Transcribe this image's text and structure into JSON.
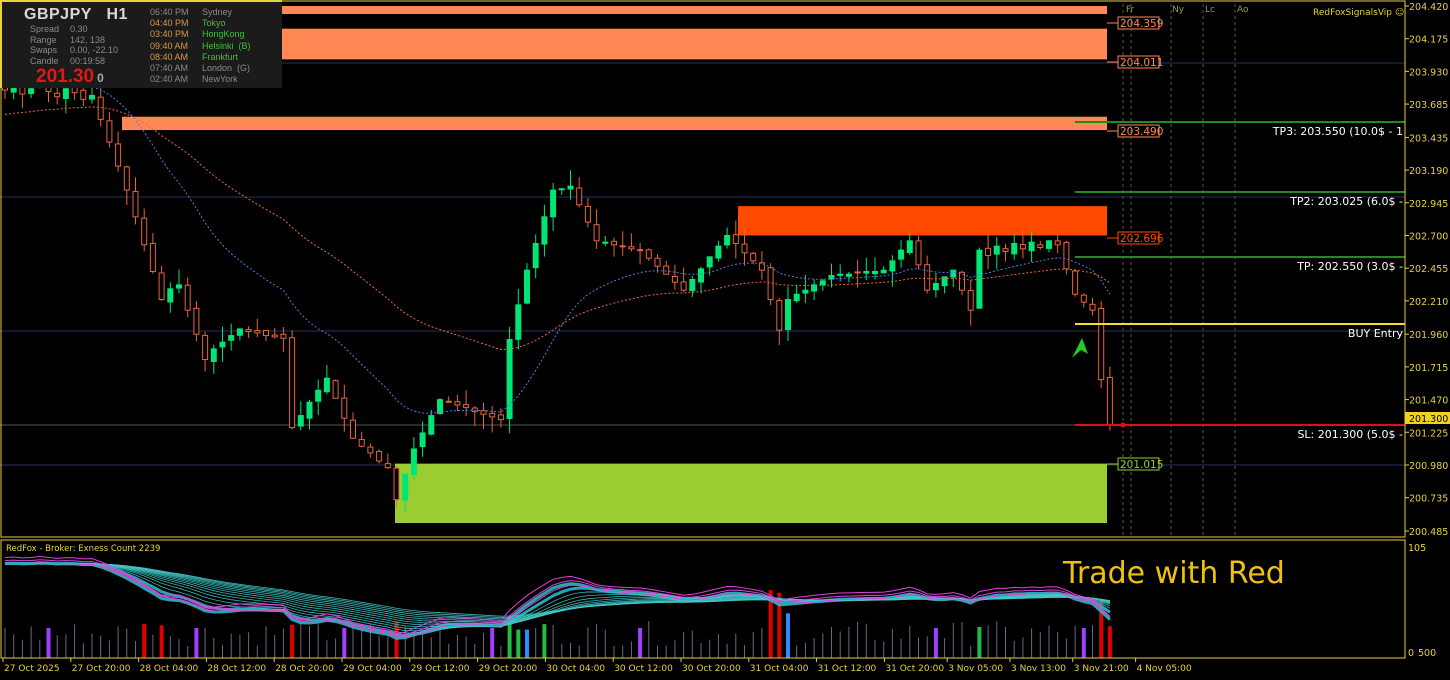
{
  "info_panel": {
    "symbol": "GBPJPY   H1",
    "stats": [
      {
        "label": "Spread",
        "value": "0.30"
      },
      {
        "label": "Range",
        "value": "142, 138"
      },
      {
        "label": "Swaps",
        "value": "0.00, -22.10"
      },
      {
        "label": "Candle",
        "value": "00:19:58"
      }
    ],
    "price": "201.30",
    "price_suffix": "0",
    "sessions": [
      {
        "time": "06:40 PM",
        "city": "Sydney",
        "active": false
      },
      {
        "time": "04:40 PM",
        "city": "Tokyo",
        "active": true
      },
      {
        "time": "03:40 PM",
        "city": "HongKong",
        "active": true
      },
      {
        "time": "09:40 AM",
        "city": "Helsinki  (B)",
        "active": true
      },
      {
        "time": "08:40 AM",
        "city": "Frankfurt",
        "active": true
      },
      {
        "time": "07:40 AM",
        "city": "London  (G)",
        "active": false
      },
      {
        "time": "02:40 AM",
        "city": "NewYork",
        "active": false
      }
    ]
  },
  "brand": "RedFoxSignalsVip ☺",
  "session_markers": [
    "Fr",
    "Ny",
    "Lc",
    "Ao"
  ],
  "zones": [
    {
      "top": 204.42,
      "bottom": 204.36,
      "label": "204.359",
      "color": "#ff8855"
    },
    {
      "top": 204.25,
      "bottom": 204.02,
      "label": "204.011",
      "color": "#ff8855"
    },
    {
      "top": 203.59,
      "bottom": 203.49,
      "label": "203.490",
      "color": "#ff8855"
    },
    {
      "top": 202.92,
      "bottom": 202.7,
      "label": "202.696",
      "color": "#ff4a00"
    },
    {
      "top": 200.99,
      "bottom": 200.545,
      "label": "201.015",
      "color": "#9acd32"
    }
  ],
  "trade_levels": [
    {
      "price": 203.55,
      "text": "TP3: 203.550 (10.0$ - 1",
      "color": "#1e8c1e"
    },
    {
      "price": 203.025,
      "text": "TP2: 203.025 (6.0$ -",
      "color": "#1e8c1e"
    },
    {
      "price": 202.55,
      "text": "TP: 202.550 (3.0$ -",
      "color": "#1e8c1e"
    },
    {
      "price": 202.04,
      "text": "BUY Entry",
      "color": "#f0e030"
    },
    {
      "price": 201.3,
      "text": "SL: 201.300 (5.0$ -",
      "color": "#e01010"
    }
  ],
  "current_price": "201.300",
  "overlay_text": "Trade with Red",
  "subwindow": {
    "label": "RedFox -  Broker: Exness    Count  2239",
    "axis_top": "105",
    "axis_bottom": "500",
    "axis_bottom_overlap": "0"
  },
  "chart_data": {
    "type": "candlestick",
    "symbol": "GBPJPY",
    "timeframe": "H1",
    "ylim": [
      200.485,
      204.42
    ],
    "y_ticks": [
      "204.420",
      "204.175",
      "203.930",
      "203.685",
      "203.435",
      "203.190",
      "202.945",
      "202.700",
      "202.455",
      "202.210",
      "201.960",
      "201.715",
      "201.470",
      "201.225",
      "200.980",
      "200.735",
      "200.485"
    ],
    "x_ticks": [
      "27 Oct 2025",
      "27 Oct 20:00",
      "28 Oct 04:00",
      "28 Oct 12:00",
      "28 Oct 20:00",
      "29 Oct 04:00",
      "29 Oct 12:00",
      "29 Oct 20:00",
      "30 Oct 04:00",
      "30 Oct 12:00",
      "30 Oct 20:00",
      "31 Oct 04:00",
      "31 Oct 12:00",
      "31 Oct 20:00",
      "3 Nov 05:00",
      "3 Nov 13:00",
      "3 Nov 21:00",
      "4 Nov 05:00"
    ],
    "closes": [
      203.79,
      203.82,
      203.76,
      203.8,
      203.85,
      203.78,
      203.74,
      203.8,
      203.77,
      203.72,
      203.75,
      203.57,
      203.4,
      203.22,
      203.04,
      202.84,
      202.63,
      202.43,
      202.22,
      202.3,
      202.33,
      202.14,
      201.96,
      201.77,
      201.85,
      201.9,
      201.95,
      202.0,
      201.98,
      201.97,
      201.95,
      201.94,
      201.93,
      201.26,
      201.35,
      201.45,
      201.54,
      201.63,
      201.48,
      201.33,
      201.18,
      201.12,
      201.07,
      201.01,
      200.96,
      200.72,
      200.91,
      201.1,
      201.22,
      201.35,
      201.47,
      201.45,
      201.43,
      201.41,
      201.38,
      201.36,
      201.34,
      201.32,
      201.92,
      202.18,
      202.44,
      202.64,
      202.84,
      203.04,
      203.05,
      203.07,
      202.93,
      202.8,
      202.66,
      202.65,
      202.63,
      202.62,
      202.6,
      202.59,
      202.53,
      202.47,
      202.41,
      202.35,
      202.29,
      202.37,
      202.45,
      202.54,
      202.62,
      202.7,
      202.64,
      202.57,
      202.51,
      202.44,
      202.22,
      201.99,
      202.22,
      202.26,
      202.29,
      202.33,
      202.36,
      202.4,
      202.41,
      202.41,
      202.42,
      202.43,
      202.43,
      202.44,
      202.51,
      202.59,
      202.66,
      202.48,
      202.29,
      202.34,
      202.39,
      202.44,
      202.29,
      202.14,
      202.59,
      202.55,
      202.62,
      202.58,
      202.64,
      202.6,
      202.65,
      202.61,
      202.66,
      202.63,
      202.45,
      202.26,
      202.2,
      202.14,
      201.62,
      201.28
    ],
    "colors": {
      "bull": "#00e676",
      "bear": "#e8643c",
      "ma_fast": "#4a80e0",
      "ma_slow": "#e86a3a",
      "axis": "#e6d23c"
    }
  }
}
